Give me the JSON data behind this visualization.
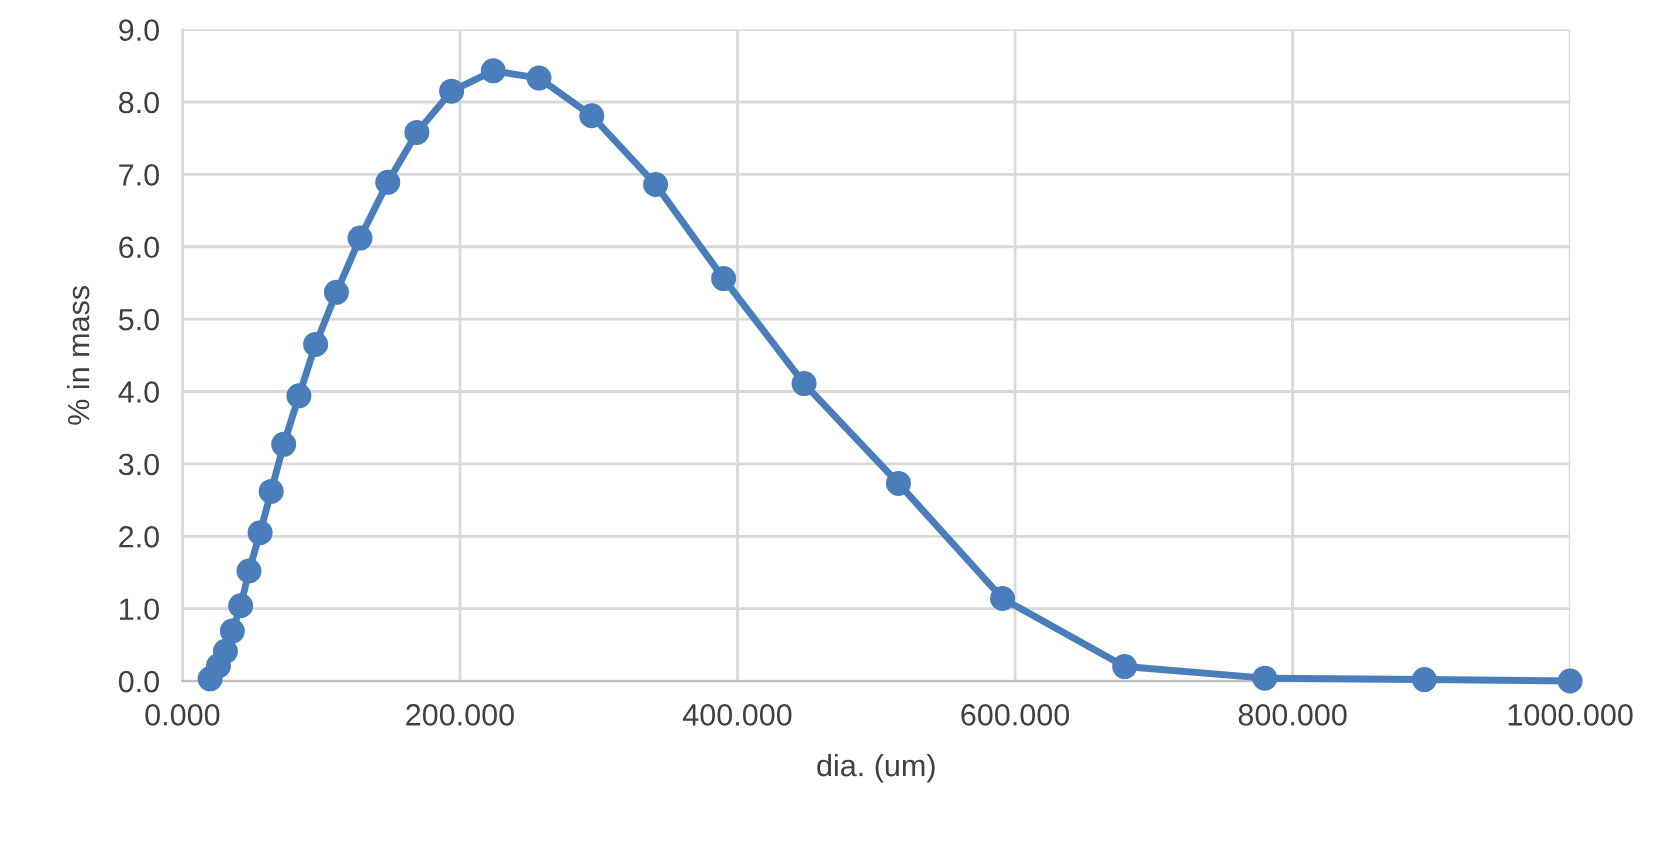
{
  "chart_data": {
    "type": "line",
    "xlabel": "dia. (um)",
    "ylabel": "% in mass",
    "x": [
      20,
      26,
      31,
      36,
      42,
      48,
      56,
      64,
      73,
      84,
      96,
      111,
      128,
      148,
      169,
      194,
      224,
      257,
      295,
      341,
      390,
      448,
      516,
      591,
      679,
      780,
      895,
      1000
    ],
    "series": [
      {
        "color": "#4a7ebb",
        "values": [
          0.03,
          0.21,
          0.41,
          0.69,
          1.04,
          1.52,
          2.05,
          2.62,
          3.27,
          3.94,
          4.65,
          5.37,
          6.12,
          6.89,
          7.58,
          8.15,
          8.43,
          8.33,
          7.81,
          6.86,
          5.56,
          4.11,
          2.73,
          1.14,
          0.2,
          0.04,
          0.02,
          0.0
        ]
      }
    ],
    "xlim": [
      0,
      1000
    ],
    "ylim": [
      0,
      9
    ],
    "xticks": [
      {
        "value": 0,
        "label": "0.000"
      },
      {
        "value": 200,
        "label": "200.000"
      },
      {
        "value": 400,
        "label": "400.000"
      },
      {
        "value": 600,
        "label": "600.000"
      },
      {
        "value": 800,
        "label": "800.000"
      },
      {
        "value": 1000,
        "label": "1000.000"
      }
    ],
    "yticks": [
      {
        "value": 0,
        "label": "0.0"
      },
      {
        "value": 1,
        "label": "1.0"
      },
      {
        "value": 2,
        "label": "2.0"
      },
      {
        "value": 3,
        "label": "3.0"
      },
      {
        "value": 4,
        "label": "4.0"
      },
      {
        "value": 5,
        "label": "5.0"
      },
      {
        "value": 6,
        "label": "6.0"
      },
      {
        "value": 7,
        "label": "7.0"
      },
      {
        "value": 8,
        "label": "8.0"
      },
      {
        "value": 9,
        "label": "9.0"
      }
    ],
    "grid": true,
    "marker": "circle",
    "line_style": "solid",
    "legend": false
  }
}
